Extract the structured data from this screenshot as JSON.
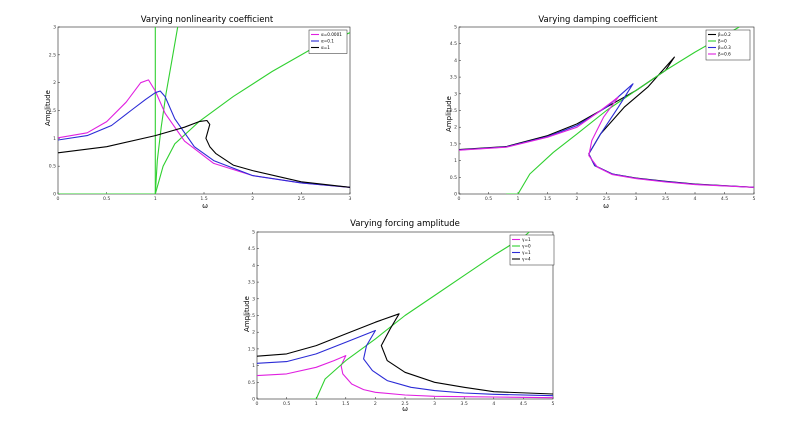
{
  "chart_data": [
    {
      "type": "line",
      "title": "Varying nonlinearity coefficient",
      "xlabel": "ω",
      "ylabel": "Amplitude",
      "xlim": [
        0,
        3
      ],
      "ylim": [
        0,
        3
      ],
      "xticks": [
        "0",
        "0.5",
        "1",
        "1.5",
        "2",
        "2.5",
        "3"
      ],
      "yticks": [
        "0",
        "0.5",
        "1",
        "1.5",
        "2",
        "2.5",
        "3"
      ],
      "legend_position": "top-right",
      "series": [
        {
          "name": "α=0.0001",
          "color": "#e020e0",
          "points": [
            [
              0,
              1.01
            ],
            [
              0.3,
              1.1
            ],
            [
              0.5,
              1.3
            ],
            [
              0.7,
              1.65
            ],
            [
              0.85,
              2.0
            ],
            [
              0.93,
              2.05
            ],
            [
              1.0,
              1.85
            ],
            [
              1.1,
              1.45
            ],
            [
              1.3,
              0.95
            ],
            [
              1.6,
              0.55
            ],
            [
              2.0,
              0.33
            ],
            [
              2.5,
              0.2
            ],
            [
              3.0,
              0.12
            ]
          ]
        },
        {
          "name": "α=0.1",
          "color": "#2b2bd6",
          "points": [
            [
              0,
              0.97
            ],
            [
              0.3,
              1.05
            ],
            [
              0.55,
              1.23
            ],
            [
              0.75,
              1.5
            ],
            [
              0.9,
              1.7
            ],
            [
              1.0,
              1.82
            ],
            [
              1.05,
              1.85
            ],
            [
              1.1,
              1.75
            ],
            [
              1.2,
              1.35
            ],
            [
              1.4,
              0.85
            ],
            [
              1.6,
              0.6
            ],
            [
              2.0,
              0.33
            ],
            [
              2.5,
              0.2
            ],
            [
              3.0,
              0.12
            ]
          ]
        },
        {
          "name": "α=1",
          "color": "#000000",
          "points": [
            [
              0,
              0.74
            ],
            [
              0.5,
              0.85
            ],
            [
              1.0,
              1.05
            ],
            [
              1.3,
              1.2
            ],
            [
              1.45,
              1.3
            ],
            [
              1.53,
              1.32
            ],
            [
              1.56,
              1.25
            ],
            [
              1.52,
              1.0
            ],
            [
              1.56,
              0.85
            ],
            [
              1.62,
              0.73
            ],
            [
              1.8,
              0.52
            ],
            [
              2.0,
              0.42
            ],
            [
              2.5,
              0.22
            ],
            [
              3.0,
              0.12
            ]
          ]
        }
      ],
      "backbones": [
        {
          "color": "#30d030",
          "points": [
            [
              0,
              0
            ],
            [
              1.0,
              0
            ],
            [
              1.0,
              3.0
            ]
          ]
        },
        {
          "color": "#30d030",
          "points": [
            [
              1.0,
              0
            ],
            [
              1.02,
              0.6
            ],
            [
              1.06,
              1.2
            ],
            [
              1.11,
              1.8
            ],
            [
              1.17,
              2.4
            ],
            [
              1.23,
              3.0
            ]
          ]
        },
        {
          "color": "#30d030",
          "points": [
            [
              1.0,
              0
            ],
            [
              1.08,
              0.5
            ],
            [
              1.2,
              0.9
            ],
            [
              1.45,
              1.3
            ],
            [
              1.8,
              1.75
            ],
            [
              2.2,
              2.2
            ],
            [
              2.6,
              2.6
            ],
            [
              3.0,
              2.9
            ]
          ]
        }
      ]
    },
    {
      "type": "line",
      "title": "Varying damping coefficient",
      "xlabel": "ω",
      "ylabel": "Amplitude",
      "xlim": [
        0,
        5
      ],
      "ylim": [
        0,
        5
      ],
      "xticks": [
        "0",
        "0.5",
        "1",
        "1.5",
        "2",
        "2.5",
        "3",
        "3.5",
        "4",
        "4.5",
        "5"
      ],
      "yticks": [
        "0",
        "0.5",
        "1",
        "1.5",
        "2",
        "2.5",
        "3",
        "3.5",
        "4",
        "4.5",
        "5"
      ],
      "legend_position": "top-right",
      "series": [
        {
          "name": "β=0.2",
          "color": "#000000",
          "points": [
            [
              0,
              1.33
            ],
            [
              0.8,
              1.42
            ],
            [
              1.5,
              1.75
            ],
            [
              2.0,
              2.1
            ],
            [
              2.5,
              2.6
            ],
            [
              3.0,
              3.1
            ],
            [
              3.5,
              3.7
            ],
            [
              3.65,
              4.1
            ],
            [
              3.2,
              3.2
            ],
            [
              2.8,
              2.6
            ],
            [
              2.4,
              1.8
            ],
            [
              2.2,
              1.2
            ],
            [
              2.3,
              0.85
            ],
            [
              2.6,
              0.6
            ],
            [
              3.0,
              0.48
            ],
            [
              3.5,
              0.38
            ],
            [
              4.0,
              0.3
            ],
            [
              5.0,
              0.2
            ]
          ]
        },
        {
          "name": "β=0",
          "color": "#30d030",
          "points": [
            [
              0.8,
              0
            ],
            [
              1.0,
              0
            ],
            [
              1.2,
              0.6
            ],
            [
              1.6,
              1.25
            ],
            [
              2.0,
              1.8
            ],
            [
              2.5,
              2.5
            ],
            [
              3.0,
              3.1
            ],
            [
              3.5,
              3.7
            ],
            [
              4.0,
              4.25
            ],
            [
              4.5,
              4.75
            ],
            [
              4.75,
              5.0
            ]
          ]
        },
        {
          "name": "β=0.3",
          "color": "#2b2bd6",
          "points": [
            [
              0,
              1.32
            ],
            [
              0.8,
              1.41
            ],
            [
              1.5,
              1.72
            ],
            [
              2.0,
              2.05
            ],
            [
              2.5,
              2.6
            ],
            [
              2.95,
              3.3
            ],
            [
              2.7,
              2.6
            ],
            [
              2.4,
              1.8
            ],
            [
              2.2,
              1.2
            ],
            [
              2.3,
              0.85
            ],
            [
              2.6,
              0.6
            ],
            [
              3.0,
              0.47
            ],
            [
              3.5,
              0.37
            ],
            [
              4.0,
              0.29
            ],
            [
              5.0,
              0.2
            ]
          ]
        },
        {
          "name": "β=0.6",
          "color": "#e020e0",
          "points": [
            [
              0,
              1.31
            ],
            [
              0.8,
              1.4
            ],
            [
              1.5,
              1.7
            ],
            [
              2.0,
              2.0
            ],
            [
              2.4,
              2.5
            ],
            [
              2.7,
              2.9
            ],
            [
              2.45,
              2.3
            ],
            [
              2.25,
              1.6
            ],
            [
              2.2,
              1.15
            ],
            [
              2.35,
              0.8
            ],
            [
              2.6,
              0.58
            ],
            [
              3.0,
              0.46
            ],
            [
              3.5,
              0.36
            ],
            [
              4.0,
              0.28
            ],
            [
              5.0,
              0.2
            ]
          ]
        }
      ]
    },
    {
      "type": "line",
      "title": "Varying forcing amplitude",
      "xlabel": "ω",
      "ylabel": "Amplitude",
      "xlim": [
        0,
        5
      ],
      "ylim": [
        0,
        5
      ],
      "xticks": [
        "0",
        "0.5",
        "1",
        "1.5",
        "2",
        "2.5",
        "3",
        "3.5",
        "4",
        "4.5",
        "5"
      ],
      "yticks": [
        "0",
        "0.5",
        "1",
        "1.5",
        "2",
        "2.5",
        "3",
        "3.5",
        "4",
        "4.5",
        "5"
      ],
      "legend_position": "top-right",
      "series": [
        {
          "name": "γ=1",
          "color": "#e020e0",
          "points": [
            [
              0,
              0.7
            ],
            [
              0.5,
              0.75
            ],
            [
              1.0,
              0.95
            ],
            [
              1.3,
              1.15
            ],
            [
              1.5,
              1.3
            ],
            [
              1.42,
              1.0
            ],
            [
              1.45,
              0.75
            ],
            [
              1.6,
              0.45
            ],
            [
              1.8,
              0.28
            ],
            [
              2.0,
              0.2
            ],
            [
              2.5,
              0.12
            ],
            [
              3.0,
              0.08
            ],
            [
              3.5,
              0.07
            ],
            [
              4.0,
              0.06
            ],
            [
              5.0,
              0.04
            ]
          ]
        },
        {
          "name": "γ=0",
          "color": "#30d030",
          "points": [
            [
              0.9,
              0
            ],
            [
              1.0,
              0
            ],
            [
              1.15,
              0.6
            ],
            [
              1.5,
              1.15
            ],
            [
              2.0,
              1.8
            ],
            [
              2.5,
              2.5
            ],
            [
              3.0,
              3.1
            ],
            [
              3.5,
              3.7
            ],
            [
              4.0,
              4.3
            ],
            [
              4.5,
              4.85
            ],
            [
              4.6,
              5.0
            ]
          ]
        },
        {
          "name": "γ=1",
          "color": "#2b2bd6",
          "points": [
            [
              0,
              1.07
            ],
            [
              0.5,
              1.12
            ],
            [
              1.0,
              1.35
            ],
            [
              1.5,
              1.7
            ],
            [
              2.0,
              2.05
            ],
            [
              1.85,
              1.6
            ],
            [
              1.8,
              1.2
            ],
            [
              1.95,
              0.85
            ],
            [
              2.2,
              0.55
            ],
            [
              2.6,
              0.35
            ],
            [
              3.0,
              0.25
            ],
            [
              3.5,
              0.18
            ],
            [
              4.0,
              0.14
            ],
            [
              5.0,
              0.1
            ]
          ]
        },
        {
          "name": "γ=4",
          "color": "#000000",
          "points": [
            [
              0,
              1.28
            ],
            [
              0.5,
              1.35
            ],
            [
              1.0,
              1.6
            ],
            [
              1.5,
              1.95
            ],
            [
              2.0,
              2.3
            ],
            [
              2.4,
              2.55
            ],
            [
              2.25,
              2.1
            ],
            [
              2.1,
              1.6
            ],
            [
              2.2,
              1.15
            ],
            [
              2.5,
              0.8
            ],
            [
              3.0,
              0.5
            ],
            [
              3.5,
              0.35
            ],
            [
              4.0,
              0.22
            ],
            [
              5.0,
              0.15
            ]
          ]
        }
      ]
    }
  ]
}
